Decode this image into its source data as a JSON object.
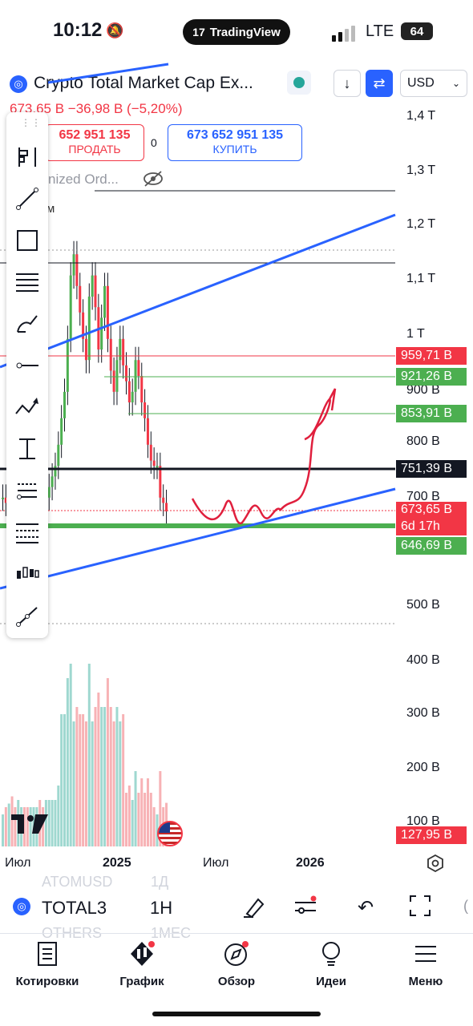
{
  "status_bar": {
    "time": "10:12",
    "carrier": "LTE",
    "battery": "64",
    "brand": "TradingView"
  },
  "header": {
    "title": "Crypto Total Market Cap Ex...",
    "currency": "USD",
    "price_change": "673,65 B −36,98 B (−5,20%)"
  },
  "order_panel": {
    "sell_price": "652 951 135",
    "sell_label": "ПРОДАТЬ",
    "spread": "0",
    "buy_price": "673 652 951 135",
    "buy_label": "КУПИТЬ",
    "unnamed_order": "nized Ord...",
    "m_label": "м"
  },
  "price_axis": [
    "1,4 T",
    "1,3 T",
    "1,2 T",
    "1,1 T",
    "1 T",
    "900 B",
    "800 B",
    "700 B",
    "500 B",
    "400 B",
    "300 B",
    "200 B",
    "100 B"
  ],
  "price_tags": [
    {
      "label": "959,71 B",
      "color": "#f23645"
    },
    {
      "label": "921,26 B",
      "color": "#4caf50"
    },
    {
      "label": "853,91 B",
      "color": "#4caf50"
    },
    {
      "label": "751,39 B",
      "color": "#131722"
    },
    {
      "label": "673,65 B",
      "sub": "6d 17h",
      "color": "#f23645"
    },
    {
      "label": "646,69 B",
      "color": "#4caf50"
    },
    {
      "label": "127,95 B",
      "color": "#f23645"
    }
  ],
  "time_axis": [
    "Июл",
    "2025",
    "Июл",
    "2026"
  ],
  "bottom_bar": {
    "symbol": "TOTAL3",
    "timeframe": "1H",
    "ghost_symbol_top": "ATOMUSD",
    "ghost_tf_top": "1Д",
    "ghost_symbol_bottom": "OTHERS",
    "ghost_tf_bottom": "1МЕС"
  },
  "nav": [
    "Котировки",
    "График",
    "Обзор",
    "Идеи",
    "Меню"
  ],
  "colors": {
    "up": "#4caf50",
    "down": "#f23645",
    "accent": "#2962ff"
  }
}
